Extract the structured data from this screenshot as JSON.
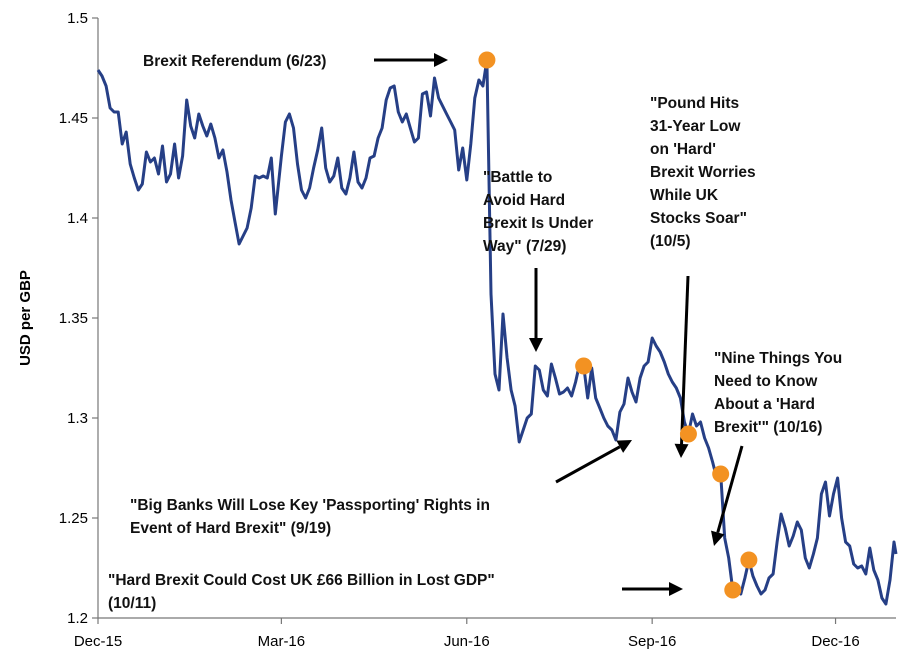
{
  "chart_data": {
    "type": "line",
    "title": "",
    "xlabel": "",
    "ylabel": "USD per GBP",
    "ylim": [
      1.2,
      1.5
    ],
    "y_ticks": [
      "1.2",
      "1.25",
      "1.3",
      "1.35",
      "1.4",
      "1.45",
      "1.5"
    ],
    "x_ticks": [
      {
        "label": "Dec-15",
        "date": "2015-12-01"
      },
      {
        "label": "Mar-16",
        "date": "2016-03-01"
      },
      {
        "label": "Jun-16",
        "date": "2016-06-01"
      },
      {
        "label": "Sep-16",
        "date": "2016-09-01"
      },
      {
        "label": "Dec-16",
        "date": "2016-12-01"
      }
    ],
    "x_range": [
      "2015-12-01",
      "2016-12-31"
    ],
    "grid": false,
    "legend": "none",
    "colors": {
      "line": "#263f86",
      "marker": "#f39222",
      "arrow": "#000000"
    },
    "series": [
      {
        "points": [
          [
            "2015-12-01",
            1.474
          ],
          [
            "2015-12-03",
            1.471
          ],
          [
            "2015-12-05",
            1.466
          ],
          [
            "2015-12-07",
            1.455
          ],
          [
            "2015-12-09",
            1.453
          ],
          [
            "2015-12-11",
            1.453
          ],
          [
            "2015-12-13",
            1.437
          ],
          [
            "2015-12-15",
            1.443
          ],
          [
            "2015-12-17",
            1.427
          ],
          [
            "2015-12-19",
            1.42
          ],
          [
            "2015-12-21",
            1.414
          ],
          [
            "2015-12-23",
            1.417
          ],
          [
            "2015-12-25",
            1.433
          ],
          [
            "2015-12-27",
            1.428
          ],
          [
            "2015-12-29",
            1.43
          ],
          [
            "2015-12-31",
            1.422
          ],
          [
            "2016-01-02",
            1.436
          ],
          [
            "2016-01-04",
            1.418
          ],
          [
            "2016-01-06",
            1.422
          ],
          [
            "2016-01-08",
            1.437
          ],
          [
            "2016-01-10",
            1.42
          ],
          [
            "2016-01-12",
            1.431
          ],
          [
            "2016-01-14",
            1.459
          ],
          [
            "2016-01-16",
            1.446
          ],
          [
            "2016-01-18",
            1.44
          ],
          [
            "2016-01-20",
            1.452
          ],
          [
            "2016-01-22",
            1.446
          ],
          [
            "2016-01-24",
            1.441
          ],
          [
            "2016-01-26",
            1.447
          ],
          [
            "2016-01-28",
            1.44
          ],
          [
            "2016-01-30",
            1.43
          ],
          [
            "2016-02-01",
            1.434
          ],
          [
            "2016-02-03",
            1.423
          ],
          [
            "2016-02-05",
            1.409
          ],
          [
            "2016-02-07",
            1.398
          ],
          [
            "2016-02-09",
            1.387
          ],
          [
            "2016-02-11",
            1.391
          ],
          [
            "2016-02-13",
            1.395
          ],
          [
            "2016-02-15",
            1.405
          ],
          [
            "2016-02-17",
            1.421
          ],
          [
            "2016-02-19",
            1.42
          ],
          [
            "2016-02-21",
            1.421
          ],
          [
            "2016-02-23",
            1.42
          ],
          [
            "2016-02-25",
            1.43
          ],
          [
            "2016-02-27",
            1.402
          ],
          [
            "2016-03-01",
            1.431
          ],
          [
            "2016-03-03",
            1.448
          ],
          [
            "2016-03-05",
            1.452
          ],
          [
            "2016-03-07",
            1.445
          ],
          [
            "2016-03-09",
            1.427
          ],
          [
            "2016-03-11",
            1.414
          ],
          [
            "2016-03-13",
            1.41
          ],
          [
            "2016-03-15",
            1.415
          ],
          [
            "2016-03-17",
            1.425
          ],
          [
            "2016-03-19",
            1.434
          ],
          [
            "2016-03-21",
            1.445
          ],
          [
            "2016-03-23",
            1.425
          ],
          [
            "2016-03-25",
            1.418
          ],
          [
            "2016-03-27",
            1.421
          ],
          [
            "2016-03-29",
            1.43
          ],
          [
            "2016-03-31",
            1.415
          ],
          [
            "2016-04-02",
            1.412
          ],
          [
            "2016-04-04",
            1.42
          ],
          [
            "2016-04-06",
            1.433
          ],
          [
            "2016-04-08",
            1.418
          ],
          [
            "2016-04-10",
            1.415
          ],
          [
            "2016-04-12",
            1.42
          ],
          [
            "2016-04-14",
            1.43
          ],
          [
            "2016-04-16",
            1.431
          ],
          [
            "2016-04-18",
            1.44
          ],
          [
            "2016-04-20",
            1.445
          ],
          [
            "2016-04-22",
            1.459
          ],
          [
            "2016-04-24",
            1.465
          ],
          [
            "2016-04-26",
            1.466
          ],
          [
            "2016-04-28",
            1.453
          ],
          [
            "2016-04-30",
            1.448
          ],
          [
            "2016-05-02",
            1.452
          ],
          [
            "2016-05-04",
            1.445
          ],
          [
            "2016-05-06",
            1.438
          ],
          [
            "2016-05-08",
            1.44
          ],
          [
            "2016-05-10",
            1.462
          ],
          [
            "2016-05-12",
            1.463
          ],
          [
            "2016-05-14",
            1.451
          ],
          [
            "2016-05-16",
            1.47
          ],
          [
            "2016-05-18",
            1.46
          ],
          [
            "2016-05-20",
            1.456
          ],
          [
            "2016-05-22",
            1.452
          ],
          [
            "2016-05-24",
            1.448
          ],
          [
            "2016-05-26",
            1.444
          ],
          [
            "2016-05-28",
            1.424
          ],
          [
            "2016-05-30",
            1.435
          ],
          [
            "2016-06-01",
            1.419
          ],
          [
            "2016-06-03",
            1.437
          ],
          [
            "2016-06-05",
            1.46
          ],
          [
            "2016-06-07",
            1.469
          ],
          [
            "2016-06-09",
            1.466
          ],
          [
            "2016-06-11",
            1.479
          ],
          [
            "2016-06-13",
            1.362
          ],
          [
            "2016-06-15",
            1.322
          ],
          [
            "2016-06-17",
            1.314
          ],
          [
            "2016-06-19",
            1.352
          ],
          [
            "2016-06-21",
            1.33
          ],
          [
            "2016-06-23",
            1.314
          ],
          [
            "2016-06-25",
            1.306
          ],
          [
            "2016-06-27",
            1.288
          ],
          [
            "2016-06-29",
            1.294
          ],
          [
            "2016-07-01",
            1.3
          ],
          [
            "2016-07-03",
            1.302
          ],
          [
            "2016-07-05",
            1.326
          ],
          [
            "2016-07-07",
            1.324
          ],
          [
            "2016-07-09",
            1.314
          ],
          [
            "2016-07-11",
            1.311
          ],
          [
            "2016-07-13",
            1.327
          ],
          [
            "2016-07-15",
            1.32
          ],
          [
            "2016-07-17",
            1.312
          ],
          [
            "2016-07-19",
            1.313
          ],
          [
            "2016-07-21",
            1.315
          ],
          [
            "2016-07-23",
            1.311
          ],
          [
            "2016-07-25",
            1.318
          ],
          [
            "2016-07-27",
            1.327
          ],
          [
            "2016-07-29",
            1.326
          ],
          [
            "2016-07-31",
            1.31
          ],
          [
            "2016-08-02",
            1.325
          ],
          [
            "2016-08-04",
            1.31
          ],
          [
            "2016-08-06",
            1.305
          ],
          [
            "2016-08-08",
            1.3
          ],
          [
            "2016-08-10",
            1.296
          ],
          [
            "2016-08-12",
            1.294
          ],
          [
            "2016-08-14",
            1.289
          ],
          [
            "2016-08-16",
            1.303
          ],
          [
            "2016-08-18",
            1.307
          ],
          [
            "2016-08-20",
            1.32
          ],
          [
            "2016-08-22",
            1.313
          ],
          [
            "2016-08-24",
            1.308
          ],
          [
            "2016-08-26",
            1.32
          ],
          [
            "2016-08-28",
            1.326
          ],
          [
            "2016-08-30",
            1.328
          ],
          [
            "2016-09-01",
            1.34
          ],
          [
            "2016-09-03",
            1.336
          ],
          [
            "2016-09-05",
            1.333
          ],
          [
            "2016-09-07",
            1.328
          ],
          [
            "2016-09-09",
            1.322
          ],
          [
            "2016-09-11",
            1.318
          ],
          [
            "2016-09-13",
            1.315
          ],
          [
            "2016-09-15",
            1.31
          ],
          [
            "2016-09-17",
            1.298
          ],
          [
            "2016-09-19",
            1.292
          ],
          [
            "2016-09-21",
            1.302
          ],
          [
            "2016-09-23",
            1.296
          ],
          [
            "2016-09-25",
            1.298
          ],
          [
            "2016-09-27",
            1.29
          ],
          [
            "2016-09-29",
            1.285
          ],
          [
            "2016-10-01",
            1.278
          ],
          [
            "2016-10-03",
            1.27
          ],
          [
            "2016-10-05",
            1.272
          ],
          [
            "2016-10-07",
            1.24
          ],
          [
            "2016-10-09",
            1.23
          ],
          [
            "2016-10-11",
            1.214
          ],
          [
            "2016-10-13",
            1.215
          ],
          [
            "2016-10-15",
            1.212
          ],
          [
            "2016-10-17",
            1.22
          ],
          [
            "2016-10-19",
            1.229
          ],
          [
            "2016-10-21",
            1.221
          ],
          [
            "2016-10-23",
            1.216
          ],
          [
            "2016-10-25",
            1.212
          ],
          [
            "2016-10-27",
            1.214
          ],
          [
            "2016-10-29",
            1.22
          ],
          [
            "2016-10-31",
            1.222
          ],
          [
            "2016-11-02",
            1.238
          ],
          [
            "2016-11-04",
            1.252
          ],
          [
            "2016-11-06",
            1.245
          ],
          [
            "2016-11-08",
            1.236
          ],
          [
            "2016-11-10",
            1.241
          ],
          [
            "2016-11-12",
            1.248
          ],
          [
            "2016-11-14",
            1.244
          ],
          [
            "2016-11-16",
            1.23
          ],
          [
            "2016-11-18",
            1.225
          ],
          [
            "2016-11-20",
            1.232
          ],
          [
            "2016-11-22",
            1.24
          ],
          [
            "2016-11-24",
            1.262
          ],
          [
            "2016-11-26",
            1.268
          ],
          [
            "2016-11-28",
            1.251
          ],
          [
            "2016-11-30",
            1.262
          ],
          [
            "2016-12-02",
            1.27
          ],
          [
            "2016-12-04",
            1.25
          ],
          [
            "2016-12-06",
            1.238
          ],
          [
            "2016-12-08",
            1.236
          ],
          [
            "2016-12-10",
            1.227
          ],
          [
            "2016-12-12",
            1.225
          ],
          [
            "2016-12-14",
            1.226
          ],
          [
            "2016-12-16",
            1.222
          ],
          [
            "2016-12-18",
            1.235
          ],
          [
            "2016-12-20",
            1.224
          ],
          [
            "2016-12-22",
            1.219
          ],
          [
            "2016-12-24",
            1.21
          ],
          [
            "2016-12-26",
            1.207
          ],
          [
            "2016-12-28",
            1.219
          ],
          [
            "2016-12-30",
            1.238
          ],
          [
            "2016-12-31",
            1.232
          ]
        ]
      }
    ],
    "annotations": [
      {
        "date": "2016-06-11",
        "value": 1.479,
        "lines": [
          "Brexit Referendum  (6/23)"
        ]
      },
      {
        "date": "2016-07-29",
        "value": 1.326,
        "lines": [
          "\"Battle to",
          "Avoid Hard",
          "Brexit Is Under",
          "Way\" (7/29)"
        ]
      },
      {
        "date": "2016-09-19",
        "value": 1.292,
        "lines": [
          "\"Big Banks Will Lose Key 'Passporting' Rights in",
          "Event of Hard Brexit\" (9/19)"
        ]
      },
      {
        "date": "2016-10-05",
        "value": 1.272,
        "lines": [
          "\"Pound Hits",
          "31-Year Low",
          "on 'Hard'",
          "Brexit Worries",
          "While UK",
          "Stocks Soar\"",
          "(10/5)"
        ]
      },
      {
        "date": "2016-10-11",
        "value": 1.214,
        "lines": [
          "\"Hard Brexit Could Cost UK £66 Billion in Lost GDP\"",
          "(10/11)"
        ]
      },
      {
        "date": "2016-10-19",
        "value": 1.229,
        "lines": [
          "\"Nine Things You",
          "Need to Know",
          "About a 'Hard",
          "Brexit'\" (10/16)"
        ]
      }
    ]
  }
}
